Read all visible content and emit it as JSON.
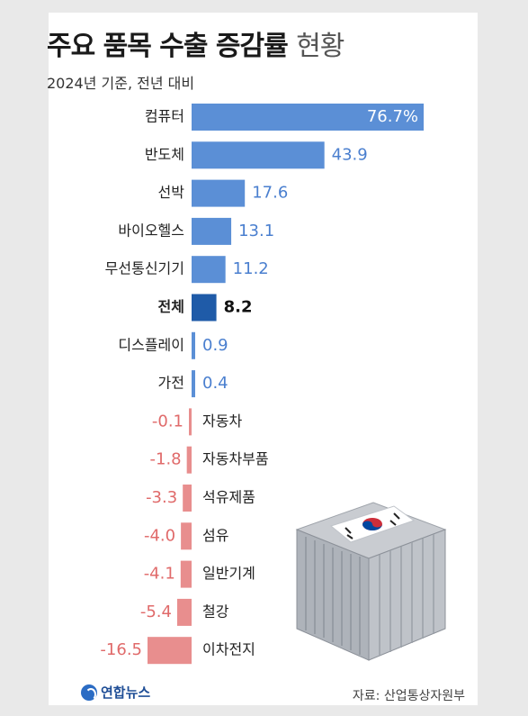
{
  "header": {
    "title_main": "주요 품목 수출 증감률",
    "title_suffix": "현황",
    "subtitle": "2024년 기준, 전년 대비"
  },
  "footer": {
    "source": "자료: 산업통상자원부",
    "logo_text": "연합뉴스"
  },
  "colors": {
    "positive_bar": "#5b8fd6",
    "total_bar": "#1f5ba8",
    "negative_bar": "#e88e8e",
    "positive_text": "#4a7fcf",
    "negative_text": "#e06a6a",
    "label_text": "#222222"
  },
  "chart_data": {
    "type": "bar",
    "orientation": "horizontal",
    "categories": [
      "컴퓨터",
      "반도체",
      "선박",
      "바이오헬스",
      "무선통신기기",
      "전체",
      "디스플레이",
      "가전",
      "자동차",
      "자동차부품",
      "석유제품",
      "섬유",
      "일반기계",
      "철강",
      "이차전지"
    ],
    "values": [
      76.7,
      43.9,
      17.6,
      13.1,
      11.2,
      8.2,
      0.9,
      0.4,
      -0.1,
      -1.8,
      -3.3,
      -4.0,
      -4.1,
      -5.4,
      -16.5
    ],
    "value_labels": [
      "76.7%",
      "43.9",
      "17.6",
      "13.1",
      "11.2",
      "8.2",
      "0.9",
      "0.4",
      "-0.1",
      "-1.8",
      "-3.3",
      "-4.0",
      "-4.1",
      "-5.4",
      "-16.5"
    ],
    "highlight": "전체",
    "unit": "%"
  }
}
